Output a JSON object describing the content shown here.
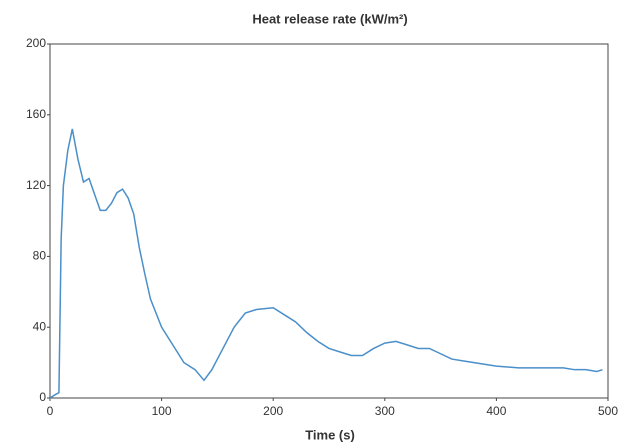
{
  "chart_data": {
    "type": "line",
    "title": "Heat release rate (kW/m²)",
    "x_label": "Time (s)",
    "x": [
      0,
      5,
      8,
      10,
      12,
      16,
      20,
      25,
      30,
      35,
      40,
      45,
      50,
      55,
      60,
      65,
      70,
      75,
      80,
      85,
      90,
      100,
      110,
      120,
      130,
      138,
      145,
      155,
      165,
      175,
      185,
      200,
      210,
      220,
      230,
      240,
      250,
      260,
      270,
      280,
      290,
      300,
      310,
      320,
      330,
      340,
      350,
      360,
      370,
      380,
      400,
      420,
      440,
      460,
      470,
      480,
      490,
      495
    ],
    "series": [
      {
        "name": "Heat release rate",
        "color": "#4a8fc9",
        "values": [
          0,
          2,
          3,
          90,
          120,
          140,
          152,
          135,
          122,
          124,
          115,
          106,
          106,
          110,
          116,
          118,
          113,
          104,
          85,
          70,
          56,
          40,
          30,
          20,
          16,
          10,
          16,
          28,
          40,
          48,
          50,
          51,
          47,
          43,
          37,
          32,
          28,
          26,
          24,
          24,
          28,
          31,
          32,
          30,
          28,
          28,
          25,
          22,
          21,
          20,
          18,
          17,
          17,
          17,
          16,
          16,
          15,
          16
        ]
      }
    ],
    "xlim": [
      0,
      500
    ],
    "xticks": [
      0,
      100,
      200,
      300,
      400,
      500
    ],
    "ylim": [
      0,
      200
    ],
    "yticks": [
      0,
      40,
      80,
      120,
      160,
      200
    ],
    "grid": false
  }
}
